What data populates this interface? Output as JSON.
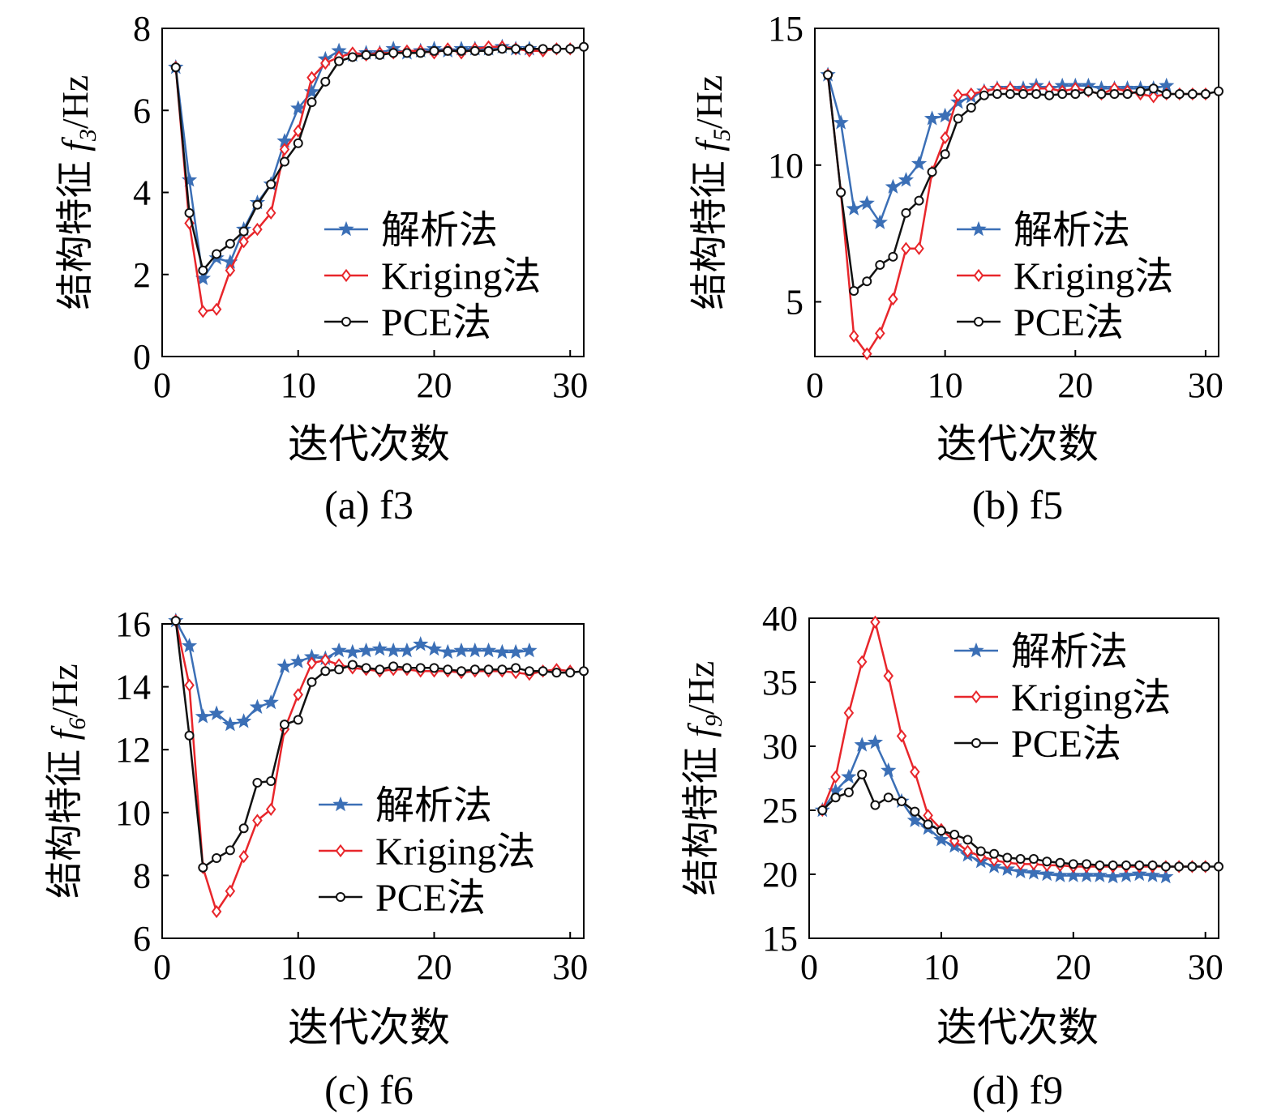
{
  "figure": {
    "series_colors": {
      "analytic": "#3B6FB6",
      "kriging": "#E8262B",
      "pce": "#111111"
    },
    "series_markers": {
      "analytic": "star",
      "kriging": "diamond",
      "pce": "circle"
    }
  },
  "chart_data": [
    {
      "id": "a",
      "type": "line",
      "caption": "(a) f3",
      "xlabel": "迭代次数",
      "ylabel_prefix": "结构特征 ",
      "ylabel_symbol": "f",
      "ylabel_sub": "3",
      "ylabel_unit": "/Hz",
      "xlim": [
        0,
        31
      ],
      "ylim": [
        0,
        8
      ],
      "xticks": [
        0,
        10,
        20,
        30
      ],
      "yticks": [
        0,
        2,
        4,
        6,
        8
      ],
      "legend": "center-right",
      "series": [
        {
          "key": "analytic",
          "name": "解析法",
          "x": [
            1,
            2,
            3,
            4,
            5,
            6,
            7,
            8,
            9,
            10,
            11,
            12,
            13,
            14,
            15,
            16,
            17,
            18,
            19,
            20,
            21,
            22,
            23,
            24,
            25,
            26,
            27
          ],
          "y": [
            7.05,
            4.3,
            1.9,
            2.4,
            2.3,
            3.1,
            3.75,
            4.2,
            5.25,
            6.05,
            6.45,
            7.25,
            7.45,
            7.35,
            7.4,
            7.4,
            7.5,
            7.4,
            7.45,
            7.5,
            7.45,
            7.5,
            7.5,
            7.5,
            7.55,
            7.5,
            7.5
          ]
        },
        {
          "key": "kriging",
          "name": "Kriging法",
          "x": [
            1,
            2,
            3,
            4,
            5,
            6,
            7,
            8,
            9,
            10,
            11,
            12,
            13,
            14,
            15,
            16,
            17,
            18,
            19,
            20,
            21,
            22,
            23,
            24,
            25,
            26,
            27,
            28,
            29,
            30
          ],
          "y": [
            7.05,
            3.25,
            1.1,
            1.15,
            2.1,
            2.8,
            3.1,
            3.5,
            5.05,
            5.5,
            6.8,
            7.15,
            7.3,
            7.4,
            7.35,
            7.4,
            7.4,
            7.45,
            7.45,
            7.4,
            7.5,
            7.4,
            7.5,
            7.55,
            7.55,
            7.5,
            7.45,
            7.45,
            7.5,
            7.5
          ]
        },
        {
          "key": "pce",
          "name": "PCE法",
          "x": [
            1,
            2,
            3,
            4,
            5,
            6,
            7,
            8,
            9,
            10,
            11,
            12,
            13,
            14,
            15,
            16,
            17,
            18,
            19,
            20,
            21,
            22,
            23,
            24,
            25,
            26,
            27,
            28,
            29,
            30,
            31
          ],
          "y": [
            7.05,
            3.5,
            2.1,
            2.5,
            2.75,
            3.05,
            3.7,
            4.2,
            4.75,
            5.2,
            6.2,
            6.7,
            7.2,
            7.3,
            7.35,
            7.35,
            7.4,
            7.4,
            7.4,
            7.45,
            7.45,
            7.45,
            7.45,
            7.45,
            7.5,
            7.5,
            7.5,
            7.5,
            7.5,
            7.5,
            7.55
          ]
        }
      ]
    },
    {
      "id": "b",
      "type": "line",
      "caption": "(b) f5",
      "xlabel": "迭代次数",
      "ylabel_prefix": "结构特征 ",
      "ylabel_symbol": "f",
      "ylabel_sub": "5",
      "ylabel_unit": "/Hz",
      "xlim": [
        0,
        31
      ],
      "ylim": [
        3,
        15
      ],
      "xticks": [
        0,
        10,
        20,
        30
      ],
      "yticks": [
        5,
        10,
        15
      ],
      "legend": "center-right",
      "series": [
        {
          "key": "analytic",
          "name": "解析法",
          "x": [
            1,
            2,
            3,
            4,
            5,
            6,
            7,
            8,
            9,
            10,
            11,
            12,
            13,
            14,
            15,
            16,
            17,
            18,
            19,
            20,
            21,
            22,
            23,
            24,
            25,
            26,
            27
          ],
          "y": [
            13.3,
            11.55,
            8.4,
            8.6,
            7.9,
            9.2,
            9.45,
            10.05,
            11.7,
            11.8,
            12.3,
            12.5,
            12.7,
            12.8,
            12.8,
            12.8,
            12.9,
            12.8,
            12.9,
            12.9,
            12.9,
            12.8,
            12.8,
            12.8,
            12.8,
            12.8,
            12.9
          ]
        },
        {
          "key": "kriging",
          "name": "Kriging法",
          "x": [
            1,
            2,
            3,
            4,
            5,
            6,
            7,
            8,
            9,
            10,
            11,
            12,
            13,
            14,
            15,
            16,
            17,
            18,
            19,
            20,
            21,
            22,
            23,
            24,
            25,
            26,
            27,
            28,
            29,
            30
          ],
          "y": [
            13.3,
            9.0,
            3.75,
            3.1,
            3.85,
            5.1,
            6.95,
            6.95,
            9.75,
            11.0,
            12.55,
            12.6,
            12.7,
            12.8,
            12.8,
            12.7,
            12.8,
            12.8,
            12.7,
            12.8,
            12.7,
            12.6,
            12.8,
            12.7,
            12.6,
            12.5,
            12.6,
            12.6,
            12.6,
            12.6
          ]
        },
        {
          "key": "pce",
          "name": "PCE法",
          "x": [
            1,
            2,
            3,
            4,
            5,
            6,
            7,
            8,
            9,
            10,
            11,
            12,
            13,
            14,
            15,
            16,
            17,
            18,
            19,
            20,
            21,
            22,
            23,
            24,
            25,
            26,
            27,
            28,
            29,
            30,
            31
          ],
          "y": [
            13.3,
            9.0,
            5.4,
            5.75,
            6.35,
            6.65,
            8.25,
            8.7,
            9.75,
            10.4,
            11.7,
            12.1,
            12.55,
            12.6,
            12.6,
            12.6,
            12.6,
            12.55,
            12.6,
            12.6,
            12.7,
            12.6,
            12.6,
            12.6,
            12.7,
            12.8,
            12.6,
            12.6,
            12.6,
            12.6,
            12.7
          ]
        }
      ]
    },
    {
      "id": "c",
      "type": "line",
      "caption": "(c) f6",
      "xlabel": "迭代次数",
      "ylabel_prefix": "结构特征 ",
      "ylabel_symbol": "f",
      "ylabel_sub": "6",
      "ylabel_unit": "/Hz",
      "xlim": [
        0,
        31
      ],
      "ylim": [
        6,
        16
      ],
      "xticks": [
        0,
        10,
        20,
        30
      ],
      "yticks": [
        6,
        8,
        10,
        12,
        14,
        16
      ],
      "legend": "center-right",
      "series": [
        {
          "key": "analytic",
          "name": "解析法",
          "x": [
            1,
            2,
            3,
            4,
            5,
            6,
            7,
            8,
            9,
            10,
            11,
            12,
            13,
            14,
            15,
            16,
            17,
            18,
            19,
            20,
            21,
            22,
            23,
            24,
            25,
            26,
            27
          ],
          "y": [
            16.1,
            15.3,
            13.05,
            13.15,
            12.8,
            12.9,
            13.35,
            13.5,
            14.65,
            14.8,
            14.95,
            14.9,
            15.15,
            15.1,
            15.15,
            15.2,
            15.15,
            15.15,
            15.35,
            15.2,
            15.1,
            15.15,
            15.15,
            15.15,
            15.1,
            15.1,
            15.15
          ]
        },
        {
          "key": "kriging",
          "name": "Kriging法",
          "x": [
            1,
            2,
            3,
            4,
            5,
            6,
            7,
            8,
            9,
            10,
            11,
            12,
            13,
            14,
            15,
            16,
            17,
            18,
            19,
            20,
            21,
            22,
            23,
            24,
            25,
            26,
            27,
            28,
            29,
            30
          ],
          "y": [
            16.1,
            14.05,
            8.25,
            6.85,
            7.5,
            8.6,
            9.75,
            10.1,
            12.65,
            13.75,
            14.75,
            14.85,
            14.7,
            14.6,
            14.55,
            14.5,
            14.55,
            14.55,
            14.5,
            14.5,
            14.5,
            14.45,
            14.5,
            14.5,
            14.5,
            14.45,
            14.4,
            14.5,
            14.55,
            14.5
          ]
        },
        {
          "key": "pce",
          "name": "PCE法",
          "x": [
            1,
            2,
            3,
            4,
            5,
            6,
            7,
            8,
            9,
            10,
            11,
            12,
            13,
            14,
            15,
            16,
            17,
            18,
            19,
            20,
            21,
            22,
            23,
            24,
            25,
            26,
            27,
            28,
            29,
            30,
            31
          ],
          "y": [
            16.1,
            12.45,
            8.25,
            8.55,
            8.8,
            9.5,
            10.95,
            11.0,
            12.8,
            12.95,
            14.15,
            14.5,
            14.55,
            14.7,
            14.6,
            14.55,
            14.65,
            14.6,
            14.6,
            14.6,
            14.55,
            14.5,
            14.55,
            14.55,
            14.55,
            14.6,
            14.5,
            14.5,
            14.45,
            14.45,
            14.5
          ]
        }
      ]
    },
    {
      "id": "d",
      "type": "line",
      "caption": "(d) f9",
      "xlabel": "迭代次数",
      "ylabel_prefix": "结构特征 ",
      "ylabel_symbol": "f",
      "ylabel_sub": "9",
      "ylabel_unit": "/Hz",
      "xlim": [
        0,
        31
      ],
      "ylim": [
        15,
        40
      ],
      "xticks": [
        0,
        10,
        20,
        30
      ],
      "yticks": [
        15,
        20,
        25,
        30,
        35,
        40
      ],
      "legend": "top-right",
      "series": [
        {
          "key": "analytic",
          "name": "解析法",
          "x": [
            1,
            2,
            3,
            4,
            5,
            6,
            7,
            8,
            9,
            10,
            11,
            12,
            13,
            14,
            15,
            16,
            17,
            18,
            19,
            20,
            21,
            22,
            23,
            24,
            25,
            26,
            27
          ],
          "y": [
            25.0,
            26.5,
            27.6,
            30.1,
            30.3,
            28.1,
            25.7,
            24.2,
            23.6,
            22.7,
            22.2,
            21.5,
            21.0,
            20.6,
            20.4,
            20.2,
            20.1,
            20.0,
            19.9,
            19.9,
            19.9,
            19.9,
            19.8,
            19.9,
            20.0,
            19.9,
            19.8
          ]
        },
        {
          "key": "kriging",
          "name": "Kriging法",
          "x": [
            1,
            2,
            3,
            4,
            5,
            6,
            7,
            8,
            9,
            10,
            11,
            12,
            13,
            14,
            15,
            16,
            17,
            18,
            19,
            20,
            21,
            22,
            23,
            24,
            25,
            26,
            27,
            28,
            29,
            30
          ],
          "y": [
            25.0,
            27.6,
            32.6,
            36.6,
            39.7,
            35.5,
            30.8,
            28.0,
            24.6,
            23.5,
            22.6,
            21.8,
            21.4,
            21.1,
            20.9,
            20.8,
            20.8,
            20.7,
            20.7,
            20.6,
            20.6,
            20.6,
            20.6,
            20.6,
            20.6,
            20.6,
            20.6,
            20.6,
            20.6,
            20.6
          ]
        },
        {
          "key": "pce",
          "name": "PCE法",
          "x": [
            1,
            2,
            3,
            4,
            5,
            6,
            7,
            8,
            9,
            10,
            11,
            12,
            13,
            14,
            15,
            16,
            17,
            18,
            19,
            20,
            21,
            22,
            23,
            24,
            25,
            26,
            27,
            28,
            29,
            30,
            31
          ],
          "y": [
            25.0,
            26.0,
            26.4,
            27.8,
            25.4,
            26.0,
            25.7,
            24.9,
            23.9,
            23.4,
            23.1,
            22.7,
            21.8,
            21.6,
            21.3,
            21.2,
            21.2,
            21.0,
            20.9,
            20.8,
            20.8,
            20.7,
            20.7,
            20.7,
            20.7,
            20.7,
            20.6,
            20.6,
            20.6,
            20.6,
            20.6
          ]
        }
      ]
    }
  ]
}
